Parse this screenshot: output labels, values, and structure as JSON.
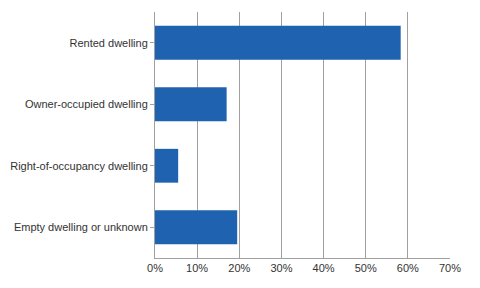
{
  "chart_data": {
    "type": "bar",
    "orientation": "horizontal",
    "categories": [
      "Rented dwelling",
      "Owner-occupied dwelling",
      "Right-of-occupancy dwelling",
      "Empty dwelling or unknown"
    ],
    "values": [
      58.3,
      17,
      5.5,
      19.5
    ],
    "color": "#1f62b0",
    "xlim": [
      0,
      70
    ],
    "xticks": [
      {
        "value": 0,
        "label": "0%"
      },
      {
        "value": 10,
        "label": "10%"
      },
      {
        "value": 20,
        "label": "20%"
      },
      {
        "value": 30,
        "label": "30%"
      },
      {
        "value": 40,
        "label": "40%"
      },
      {
        "value": 50,
        "label": "50%"
      },
      {
        "value": 60,
        "label": "60%"
      },
      {
        "value": 70,
        "label": "70%"
      }
    ],
    "grid": true
  }
}
